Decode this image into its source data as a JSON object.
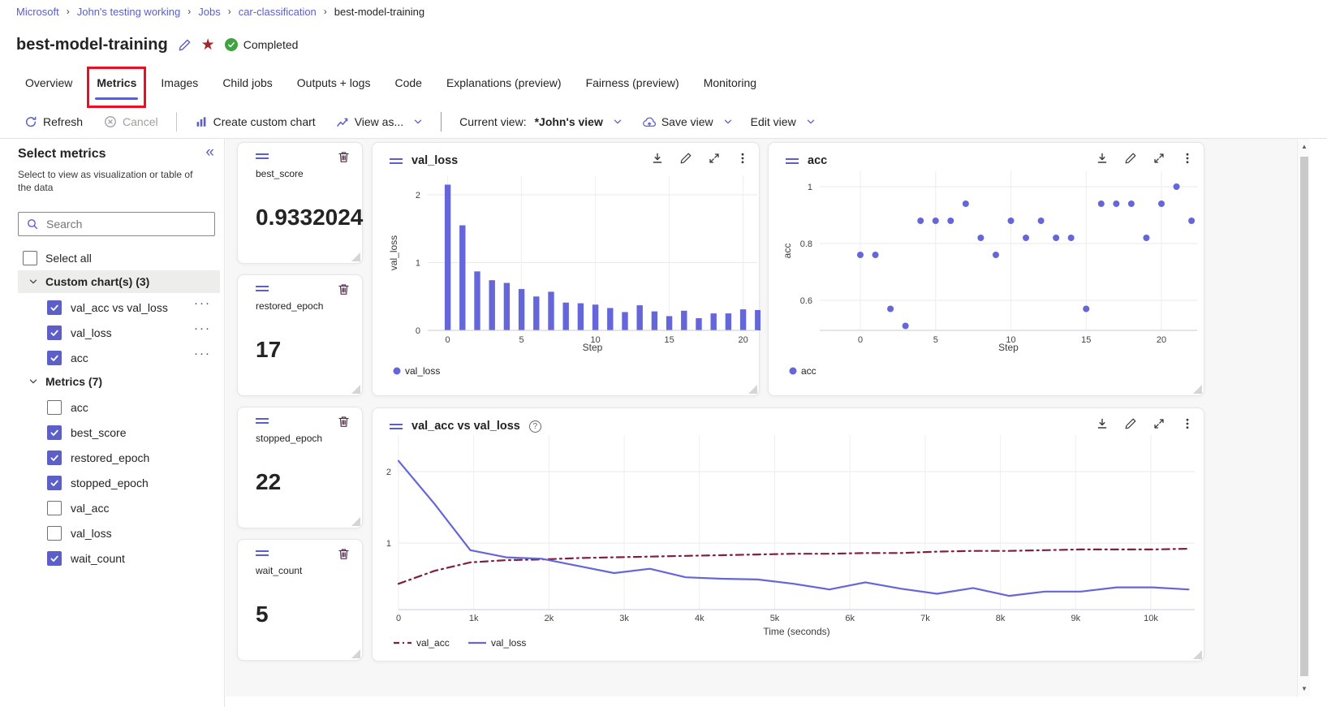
{
  "colors": {
    "accent": "#5b5fc7",
    "chart_purple": "#6466d9",
    "val_acc_line": "#801f40",
    "status_green": "#3fa33f",
    "annotation_red": "#e81123",
    "star": "#a4262c",
    "trash_icon": "#552a4a"
  },
  "icons": {
    "breadcrumb_separator": "›",
    "star": "★",
    "collapse_panel": "«",
    "item_menu": "···",
    "help": "?",
    "scroll_up": "▲",
    "scroll_down": "▼"
  },
  "breadcrumb": {
    "items": [
      "Microsoft",
      "John's testing working",
      "Jobs",
      "car-classification",
      "best-model-training"
    ]
  },
  "header": {
    "title": "best-model-training",
    "status": "Completed"
  },
  "tabs": [
    {
      "label": "Overview"
    },
    {
      "label": "Metrics",
      "selected": true,
      "annotated": true
    },
    {
      "label": "Images"
    },
    {
      "label": "Child jobs"
    },
    {
      "label": "Outputs + logs"
    },
    {
      "label": "Code"
    },
    {
      "label": "Explanations (preview)"
    },
    {
      "label": "Fairness (preview)"
    },
    {
      "label": "Monitoring"
    }
  ],
  "toolbar": {
    "refresh": "Refresh",
    "cancel": "Cancel",
    "create_custom_chart": "Create custom chart",
    "view_as": "View as...",
    "current_view_label": "Current view:",
    "current_view_value": "*John's view",
    "save_view": "Save view",
    "edit_view": "Edit view"
  },
  "sidebar": {
    "title": "Select metrics",
    "subtitle": "Select to view as visualization or table of the data",
    "search_placeholder": "Search",
    "select_all_label": "Select all",
    "groups": [
      {
        "label": "Custom chart(s) (3)",
        "highlighted": true,
        "items": [
          {
            "label": "val_acc vs val_loss",
            "checked": true,
            "has_menu": true
          },
          {
            "label": "val_loss",
            "checked": true,
            "has_menu": true
          },
          {
            "label": "acc",
            "checked": true,
            "has_menu": true
          }
        ]
      },
      {
        "label": "Metrics (7)",
        "highlighted": false,
        "items": [
          {
            "label": "acc",
            "checked": false
          },
          {
            "label": "best_score",
            "checked": true
          },
          {
            "label": "restored_epoch",
            "checked": true
          },
          {
            "label": "stopped_epoch",
            "checked": true
          },
          {
            "label": "val_acc",
            "checked": false
          },
          {
            "label": "val_loss",
            "checked": false
          },
          {
            "label": "wait_count",
            "checked": true
          }
        ]
      }
    ]
  },
  "stat_cards": [
    {
      "name": "best_score",
      "value": "0.9332024"
    },
    {
      "name": "restored_epoch",
      "value": "17"
    },
    {
      "name": "stopped_epoch",
      "value": "22"
    },
    {
      "name": "wait_count",
      "value": "5"
    }
  ],
  "chart_data": [
    {
      "id": "val_loss_chart",
      "type": "bar",
      "title": "val_loss",
      "xlabel": "Step",
      "ylabel": "val_loss",
      "x": [
        0,
        1,
        2,
        3,
        4,
        5,
        6,
        7,
        8,
        9,
        10,
        11,
        12,
        13,
        14,
        15,
        16,
        17,
        18,
        19,
        20,
        21
      ],
      "values": [
        2.15,
        1.55,
        0.87,
        0.74,
        0.7,
        0.61,
        0.5,
        0.57,
        0.41,
        0.4,
        0.38,
        0.33,
        0.27,
        0.37,
        0.28,
        0.21,
        0.29,
        0.18,
        0.25,
        0.25,
        0.31,
        0.3
      ],
      "xticks": [
        0,
        5,
        10,
        15,
        20
      ],
      "xtick_labels": [
        "0",
        "5",
        "10",
        "15",
        "20"
      ],
      "yticks": [
        0,
        1,
        2
      ],
      "ytick_labels": [
        "0",
        "1",
        "2"
      ],
      "xlim": [
        -1.35,
        20.95
      ],
      "ylim": [
        0,
        2.29
      ],
      "legend": [
        "val_loss"
      ],
      "color": "#6466d9"
    },
    {
      "id": "acc_chart",
      "type": "scatter",
      "title": "acc",
      "xlabel": "Step",
      "ylabel": "acc",
      "x": [
        0,
        1,
        2,
        3,
        4,
        5,
        6,
        7,
        8,
        9,
        10,
        11,
        12,
        13,
        14,
        15,
        16,
        17,
        18,
        19,
        20,
        21,
        22
      ],
      "values": [
        0.76,
        0.76,
        0.57,
        0.51,
        0.88,
        0.88,
        0.88,
        0.94,
        0.82,
        0.76,
        0.88,
        0.82,
        0.88,
        0.82,
        0.82,
        0.57,
        0.94,
        0.94,
        0.94,
        0.82,
        0.94,
        1.0,
        0.88
      ],
      "xticks": [
        0,
        5,
        10,
        15,
        20
      ],
      "xtick_labels": [
        "0",
        "5",
        "10",
        "15",
        "20"
      ],
      "yticks": [
        0.6,
        0.8,
        1
      ],
      "ytick_labels": [
        "0.6",
        "0.8",
        "1"
      ],
      "xlim": [
        -2.7,
        22.4
      ],
      "ylim": [
        0.49,
        1.05
      ],
      "legend": [
        "acc"
      ],
      "color": "#6466d9"
    },
    {
      "id": "combo_chart",
      "type": "line",
      "title": "val_acc vs val_loss",
      "has_help": true,
      "xlabel": "Time (seconds)",
      "ylabel": "",
      "x": [
        0,
        477,
        955,
        1432,
        1909,
        2386,
        2864,
        3341,
        3818,
        4295,
        4773,
        5250,
        5727,
        6205,
        6682,
        7159,
        7636,
        8114,
        8591,
        9068,
        9545,
        10023,
        10500
      ],
      "series": [
        {
          "name": "val_acc",
          "color": "#801f40",
          "dash": "dashdot",
          "values": [
            0.43,
            0.61,
            0.73,
            0.76,
            0.77,
            0.79,
            0.8,
            0.81,
            0.82,
            0.83,
            0.84,
            0.85,
            0.85,
            0.86,
            0.86,
            0.88,
            0.89,
            0.89,
            0.9,
            0.91,
            0.91,
            0.91,
            0.92
          ]
        },
        {
          "name": "val_loss",
          "color": "#6466d9",
          "dash": "solid",
          "values": [
            2.15,
            1.55,
            0.9,
            0.8,
            0.78,
            0.68,
            0.58,
            0.64,
            0.52,
            0.5,
            0.49,
            0.43,
            0.35,
            0.45,
            0.36,
            0.29,
            0.37,
            0.26,
            0.32,
            0.32,
            0.38,
            0.38,
            0.35
          ]
        }
      ],
      "xticks": [
        0,
        1000,
        2000,
        3000,
        4000,
        5000,
        6000,
        7000,
        8000,
        9000,
        10000
      ],
      "xtick_labels": [
        "0",
        "1k",
        "2k",
        "3k",
        "4k",
        "5k",
        "6k",
        "7k",
        "8k",
        "9k",
        "10k"
      ],
      "yticks": [
        1,
        2
      ],
      "ytick_labels": [
        "1",
        "2"
      ],
      "xlim": [
        0,
        10580
      ],
      "ylim": [
        0.07,
        2.5
      ]
    }
  ]
}
